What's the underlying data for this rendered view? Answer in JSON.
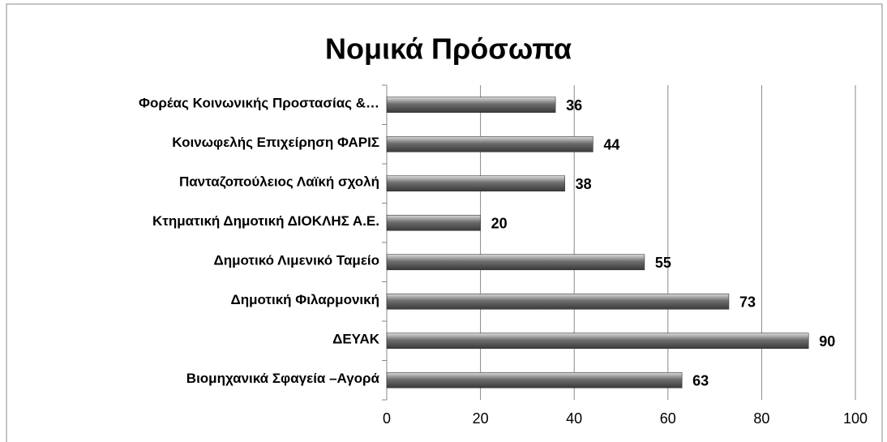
{
  "chart_data": {
    "type": "bar",
    "orientation": "horizontal",
    "title": "Νομικά Πρόσωπα",
    "categories": [
      "Φορέας Κοινωνικής Προστασίας &…",
      "Κοινωφελής Επιχείρηση ΦΑΡΙΣ",
      "Πανταζοπούλειος Λαϊκή σχολή",
      "Κτηματική Δημοτική ΔΙΟΚΛΗΣ Α.Ε.",
      "Δημοτικό Λιμενικό Ταμείο",
      "Δημοτική Φιλαρμονική",
      "ΔΕΥΑΚ",
      "Βιομηχανικά Σφαγεία –Αγορά"
    ],
    "values": [
      36,
      44,
      38,
      20,
      55,
      73,
      90,
      63
    ],
    "color": "#6e6e6e",
    "xlim": [
      0,
      100
    ],
    "xticks": [
      0,
      20,
      40,
      60,
      80,
      100
    ],
    "grid": true
  }
}
